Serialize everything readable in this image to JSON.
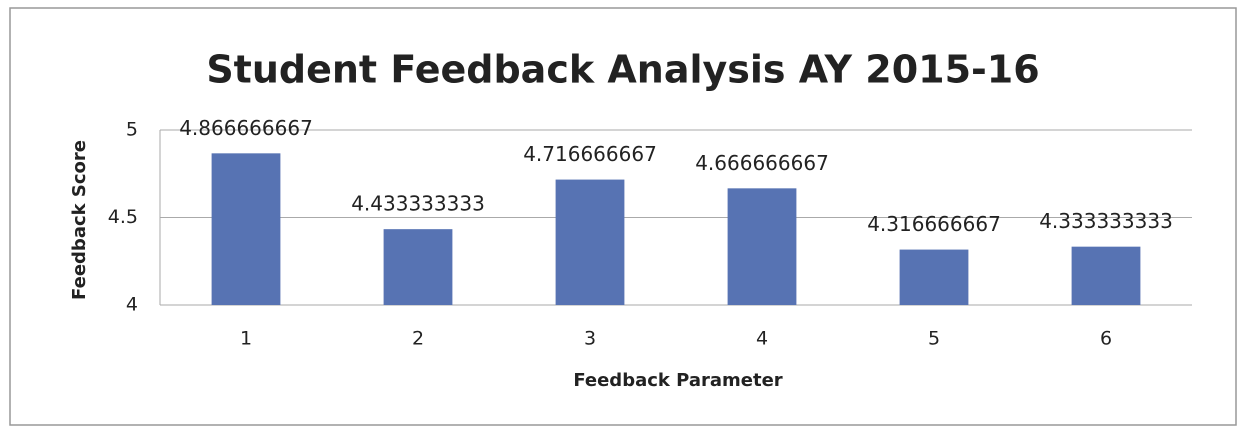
{
  "chart_data": {
    "type": "bar",
    "title": "Student Feedback Analysis AY 2015-16",
    "x_label": "Feedback Parameter",
    "y_label": "Feedback Score",
    "categories": [
      "1",
      "2",
      "3",
      "4",
      "5",
      "6"
    ],
    "values": [
      4.866666667,
      4.433333333,
      4.716666667,
      4.666666667,
      4.316666667,
      4.333333333
    ],
    "color": "#5773b3",
    "ylim": [
      4,
      5
    ],
    "yticks": [
      4,
      4.5,
      5
    ],
    "grid": true
  }
}
